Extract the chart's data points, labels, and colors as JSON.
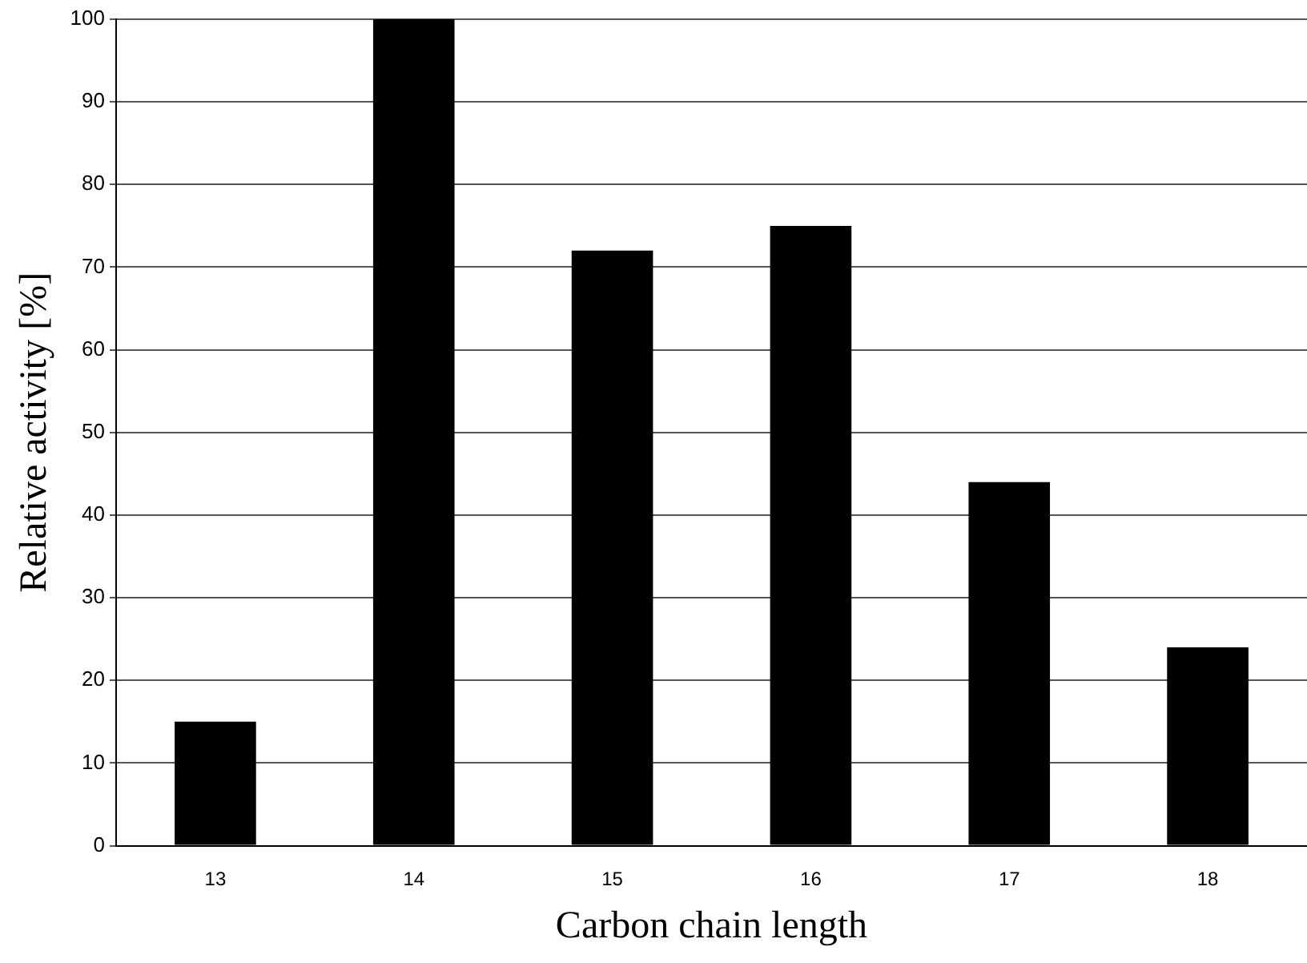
{
  "chart_data": {
    "type": "bar",
    "xlabel": "Carbon chain length",
    "ylabel": "Relative activity [%]",
    "categories": [
      "13",
      "14",
      "15",
      "16",
      "17",
      "18"
    ],
    "values": [
      15,
      100,
      72,
      75,
      44,
      24
    ],
    "color": "#000000",
    "ylim": [
      0,
      100
    ],
    "yticks": [
      0,
      10,
      20,
      30,
      40,
      50,
      60,
      70,
      80,
      90,
      100
    ],
    "grid": "y",
    "legend": false
  }
}
